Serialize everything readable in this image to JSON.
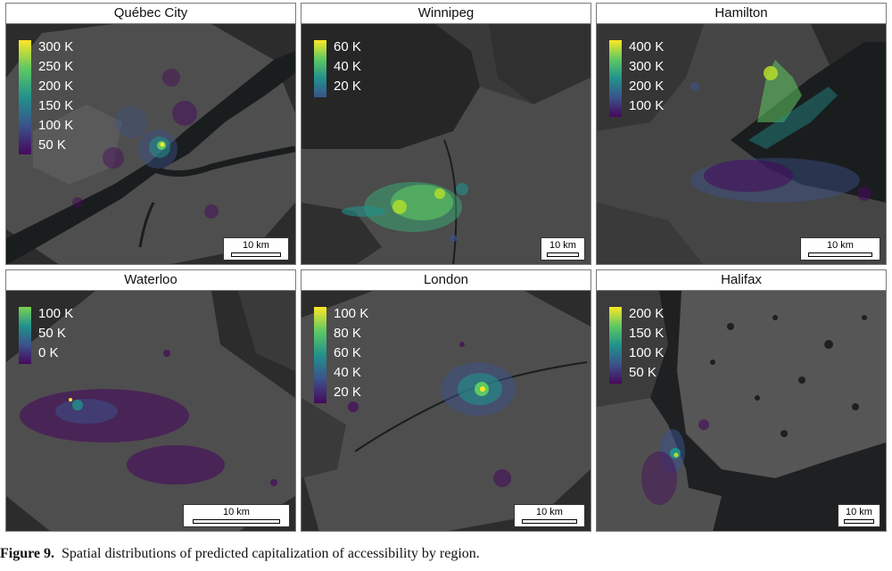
{
  "panels": [
    {
      "title": "Québec City",
      "legend": [
        "300 K",
        "250 K",
        "200 K",
        "150 K",
        "100 K",
        "50 K"
      ],
      "scale": "10 km"
    },
    {
      "title": "Winnipeg",
      "legend": [
        "60 K",
        "40 K",
        "20 K"
      ],
      "scale": "10 km"
    },
    {
      "title": "Hamilton",
      "legend": [
        "400 K",
        "300 K",
        "200 K",
        "100 K"
      ],
      "scale": "10 km"
    },
    {
      "title": "Waterloo",
      "legend": [
        "100 K",
        "50 K",
        "0 K"
      ],
      "scale": "10 km"
    },
    {
      "title": "London",
      "legend": [
        "100 K",
        "80 K",
        "60 K",
        "40 K",
        "20 K"
      ],
      "scale": "10 km"
    },
    {
      "title": "Halifax",
      "legend": [
        "200 K",
        "150 K",
        "100 K",
        "50 K"
      ],
      "scale": "10 km"
    }
  ],
  "caption": {
    "label": "Figure 9.",
    "text": "Spatial distributions of predicted capitalization of accessibility by region."
  },
  "colors": {
    "land_dark": "#2c2c2c",
    "land_light": "#505050",
    "water": "#1a1d1e",
    "viridis_low": "#46085c",
    "viridis_mid": "#21918c",
    "viridis_high": "#fde725"
  }
}
